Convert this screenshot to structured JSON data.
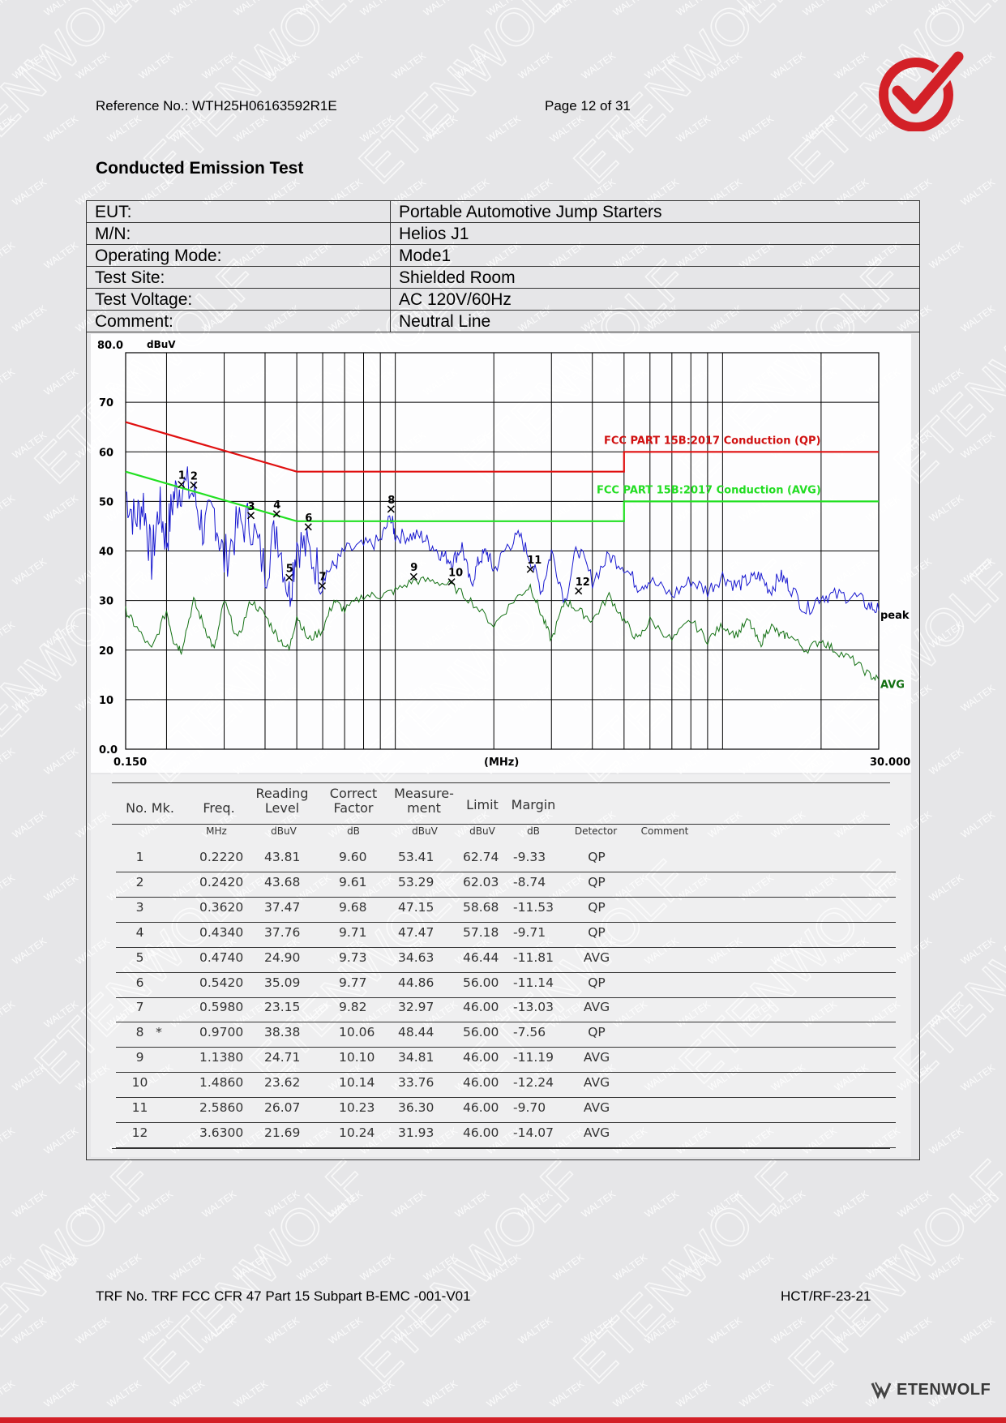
{
  "header": {
    "reference": "Reference No.: WTH25H06163592R1E",
    "page": "Page 12 of 31"
  },
  "watermark": {
    "texts": [
      "WALTEK",
      "ETENWOLF"
    ]
  },
  "title": "Conducted Emission Test",
  "info": [
    {
      "label": "EUT:",
      "value": "Portable Automotive Jump Starters"
    },
    {
      "label": "M/N:",
      "value": "Helios J1"
    },
    {
      "label": "Operating Mode:",
      "value": "Mode1"
    },
    {
      "label": "Test Site:",
      "value": "Shielded Room"
    },
    {
      "label": "Test Voltage:",
      "value": "AC 120V/60Hz"
    },
    {
      "label": "Comment:",
      "value": "Neutral Line"
    }
  ],
  "chart_data": {
    "type": "line",
    "ylabel": "dBuV",
    "xlabel": "(MHz)",
    "x_scale": "log",
    "xlim": [
      0.15,
      30.0
    ],
    "ylim": [
      0,
      80
    ],
    "x_tick_labels": [
      "0.150",
      "30.000"
    ],
    "y_tick_labels": [
      "80.0",
      "70",
      "60",
      "50",
      "40",
      "30",
      "20",
      "10",
      "0.0"
    ],
    "grid": true,
    "limit_lines": [
      {
        "name": "FCC PART 15B:2017 Conduction (QP)",
        "color": "#e01010",
        "points": [
          [
            0.15,
            66
          ],
          [
            0.5,
            56
          ],
          [
            5.0,
            56
          ],
          [
            5.0,
            60
          ],
          [
            30.0,
            60
          ]
        ]
      },
      {
        "name": "FCC PART 15B:2017 Conduction (AVG)",
        "color": "#22e022",
        "points": [
          [
            0.15,
            56
          ],
          [
            0.5,
            46
          ],
          [
            5.0,
            46
          ],
          [
            5.0,
            50
          ],
          [
            30.0,
            50
          ]
        ]
      }
    ],
    "series": [
      {
        "name": "peak",
        "color": "#1a1ad0",
        "x": [
          0.15,
          0.16,
          0.17,
          0.18,
          0.19,
          0.2,
          0.21,
          0.222,
          0.242,
          0.26,
          0.28,
          0.3,
          0.33,
          0.362,
          0.4,
          0.434,
          0.474,
          0.5,
          0.542,
          0.598,
          0.65,
          0.7,
          0.8,
          0.9,
          0.97,
          1.0,
          1.1,
          1.2,
          1.3,
          1.4,
          1.5,
          1.6,
          1.7,
          1.8,
          1.9,
          2.0,
          2.2,
          2.4,
          2.6,
          2.8,
          3.0,
          3.3,
          3.6,
          4.0,
          4.5,
          5.0,
          5.5,
          6.0,
          7.0,
          8.0,
          9.0,
          10.0,
          11.0,
          12.0,
          13.0,
          14.0,
          15.0,
          16.0,
          18.0,
          20.0,
          22.0,
          25.0,
          28.0,
          30.0
        ],
        "y": [
          52,
          46,
          50,
          38,
          49,
          42,
          51,
          53.5,
          51.5,
          44,
          48,
          38,
          45,
          46,
          36,
          45,
          31,
          42,
          40,
          35,
          37,
          40,
          41,
          42,
          47,
          43,
          43,
          43,
          41,
          39,
          38,
          41,
          33,
          38,
          40,
          36,
          41,
          43,
          38,
          32,
          40,
          30,
          41,
          34,
          39,
          37,
          33,
          34,
          31,
          34,
          32,
          35,
          33,
          34,
          35,
          32,
          35,
          33,
          28,
          31,
          31,
          31,
          29,
          28
        ]
      },
      {
        "name": "AVG",
        "color": "#127012",
        "x": [
          0.15,
          0.16,
          0.18,
          0.2,
          0.21,
          0.222,
          0.242,
          0.26,
          0.28,
          0.3,
          0.33,
          0.362,
          0.4,
          0.434,
          0.474,
          0.5,
          0.542,
          0.598,
          0.65,
          0.7,
          0.8,
          0.9,
          1.0,
          1.138,
          1.3,
          1.486,
          1.7,
          2.0,
          2.3,
          2.586,
          2.8,
          3.0,
          3.3,
          3.63,
          4.0,
          4.5,
          5.0,
          5.5,
          6.0,
          7.0,
          8.0,
          9.0,
          10.0,
          11.0,
          12.0,
          13.0,
          14.0,
          15.0,
          16.0,
          18.0,
          20.0,
          22.0,
          25.0,
          28.0,
          30.0
        ],
        "y": [
          28,
          25,
          20,
          28,
          22,
          20,
          30,
          25,
          20,
          30,
          22,
          30,
          27,
          23,
          20,
          27,
          22,
          24,
          30,
          28,
          31,
          31,
          32,
          34,
          34,
          33,
          30,
          25,
          30,
          33,
          27,
          22,
          30,
          28,
          26,
          31,
          26,
          22,
          26,
          22,
          26,
          22,
          25,
          23,
          26,
          21,
          25,
          23,
          23,
          20,
          22,
          20,
          18,
          15,
          14
        ]
      }
    ],
    "markers": [
      {
        "label": "1",
        "freq": 0.222,
        "level": 53.41
      },
      {
        "label": "2",
        "freq": 0.242,
        "level": 53.29
      },
      {
        "label": "3",
        "freq": 0.362,
        "level": 47.15
      },
      {
        "label": "4",
        "freq": 0.434,
        "level": 47.47
      },
      {
        "label": "5",
        "freq": 0.474,
        "level": 34.63
      },
      {
        "label": "6",
        "freq": 0.542,
        "level": 44.86
      },
      {
        "label": "7",
        "freq": 0.598,
        "level": 32.97
      },
      {
        "label": "8",
        "freq": 0.97,
        "level": 48.44
      },
      {
        "label": "9",
        "freq": 1.138,
        "level": 34.81
      },
      {
        "label": "10",
        "freq": 1.486,
        "level": 33.76
      },
      {
        "label": "11",
        "freq": 2.586,
        "level": 36.3
      },
      {
        "label": "12",
        "freq": 3.63,
        "level": 31.93
      }
    ]
  },
  "results": {
    "headers": {
      "no_mk": "No. Mk.",
      "freq": "Freq.",
      "reading": [
        "Reading",
        "Level"
      ],
      "correct": [
        "Correct",
        "Factor"
      ],
      "measure": [
        "Measure-",
        "ment"
      ],
      "limit": "Limit",
      "margin": "Margin"
    },
    "units": {
      "freq": "MHz",
      "reading": "dBuV",
      "correct": "dB",
      "measure": "dBuV",
      "limit": "dBuV",
      "margin": "dB",
      "detector": "Detector",
      "comment": "Comment"
    },
    "rows": [
      {
        "no": "1",
        "mk": "",
        "freq": "0.2220",
        "reading": "43.81",
        "correct": "9.60",
        "measure": "53.41",
        "limit": "62.74",
        "margin": "-9.33",
        "detector": "QP"
      },
      {
        "no": "2",
        "mk": "",
        "freq": "0.2420",
        "reading": "43.68",
        "correct": "9.61",
        "measure": "53.29",
        "limit": "62.03",
        "margin": "-8.74",
        "detector": "QP"
      },
      {
        "no": "3",
        "mk": "",
        "freq": "0.3620",
        "reading": "37.47",
        "correct": "9.68",
        "measure": "47.15",
        "limit": "58.68",
        "margin": "-11.53",
        "detector": "QP"
      },
      {
        "no": "4",
        "mk": "",
        "freq": "0.4340",
        "reading": "37.76",
        "correct": "9.71",
        "measure": "47.47",
        "limit": "57.18",
        "margin": "-9.71",
        "detector": "QP"
      },
      {
        "no": "5",
        "mk": "",
        "freq": "0.4740",
        "reading": "24.90",
        "correct": "9.73",
        "measure": "34.63",
        "limit": "46.44",
        "margin": "-11.81",
        "detector": "AVG"
      },
      {
        "no": "6",
        "mk": "",
        "freq": "0.5420",
        "reading": "35.09",
        "correct": "9.77",
        "measure": "44.86",
        "limit": "56.00",
        "margin": "-11.14",
        "detector": "QP"
      },
      {
        "no": "7",
        "mk": "",
        "freq": "0.5980",
        "reading": "23.15",
        "correct": "9.82",
        "measure": "32.97",
        "limit": "46.00",
        "margin": "-13.03",
        "detector": "AVG"
      },
      {
        "no": "8",
        "mk": "*",
        "freq": "0.9700",
        "reading": "38.38",
        "correct": "10.06",
        "measure": "48.44",
        "limit": "56.00",
        "margin": "-7.56",
        "detector": "QP"
      },
      {
        "no": "9",
        "mk": "",
        "freq": "1.1380",
        "reading": "24.71",
        "correct": "10.10",
        "measure": "34.81",
        "limit": "46.00",
        "margin": "-11.19",
        "detector": "AVG"
      },
      {
        "no": "10",
        "mk": "",
        "freq": "1.4860",
        "reading": "23.62",
        "correct": "10.14",
        "measure": "33.76",
        "limit": "46.00",
        "margin": "-12.24",
        "detector": "AVG"
      },
      {
        "no": "11",
        "mk": "",
        "freq": "2.5860",
        "reading": "26.07",
        "correct": "10.23",
        "measure": "36.30",
        "limit": "46.00",
        "margin": "-9.70",
        "detector": "AVG"
      },
      {
        "no": "12",
        "mk": "",
        "freq": "3.6300",
        "reading": "21.69",
        "correct": "10.24",
        "measure": "31.93",
        "limit": "46.00",
        "margin": "-14.07",
        "detector": "AVG"
      }
    ]
  },
  "footer": {
    "trf": "TRF No. TRF FCC CFR 47 Part 15 Subpart B-EMC -001-V01",
    "code": "HCT/RF-23-21",
    "brand": "ETENWOLF"
  },
  "colors": {
    "brand_red": "#d32027",
    "peak": "#1a1ad0",
    "avg": "#127012",
    "qp_limit": "#e01010",
    "avg_limit": "#22e022"
  }
}
